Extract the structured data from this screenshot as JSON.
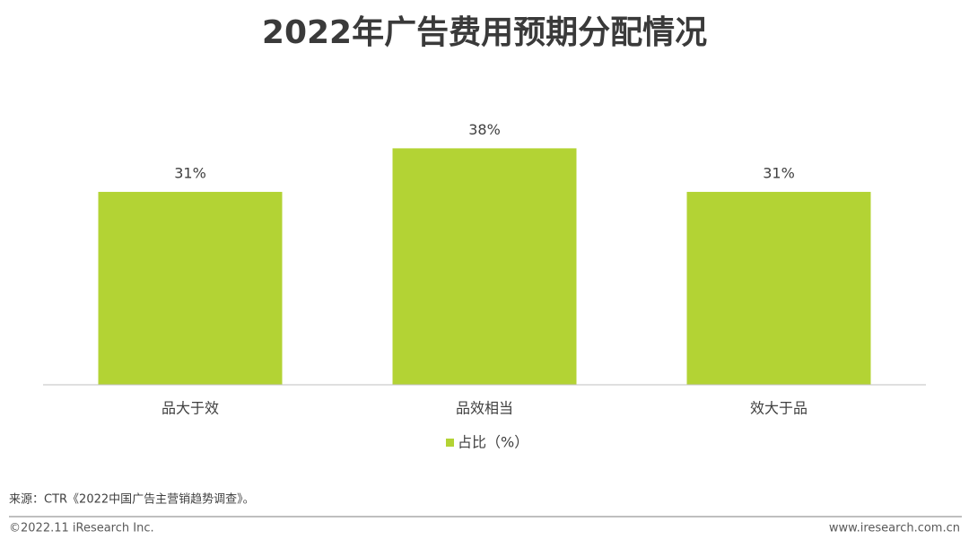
{
  "chart_data": {
    "type": "bar",
    "title": "2022年广告费用预期分配情况",
    "categories": [
      "品大于效",
      "品效相当",
      "效大于品"
    ],
    "series": [
      {
        "name": "占比（%）",
        "color": "#b3d334",
        "values": [
          31,
          38,
          31
        ],
        "value_labels": [
          "31%",
          "38%",
          "31%"
        ]
      }
    ],
    "ylim": [
      0,
      40
    ],
    "legend": "bottom"
  },
  "footer": {
    "source": "来源：CTR《2022中国广告主营销趋势调查》。",
    "copyright": "©2022.11 iResearch Inc.",
    "website": "www.iresearch.com.cn"
  }
}
